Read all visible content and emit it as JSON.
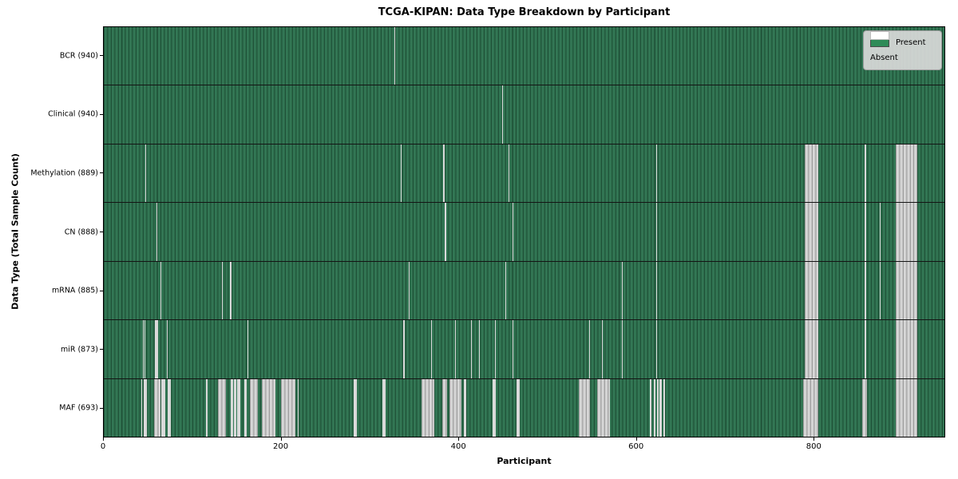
{
  "title": "TCGA-KIPAN: Data Type Breakdown by Participant",
  "legend": {
    "present_label": "Present",
    "absent_label": "Absent"
  },
  "colors": {
    "present_green": "#2e8b57",
    "present_green_dark": "#1f5138",
    "absent_white": "#ffffff",
    "absent_gray_stripe": "#c7c7c7",
    "legend_bg": "#d9d9d9",
    "figure_bg": "#ffffff"
  },
  "chart_data": {
    "type": "heatmap",
    "title": "TCGA-KIPAN: Data Type Breakdown by Participant",
    "xlabel": "Participant",
    "ylabel": "Data Type (Total Sample Count)",
    "legend": [
      "Present",
      "Absent"
    ],
    "legend_position": "upper right",
    "x_ticks": [
      0,
      200,
      400,
      600,
      800
    ],
    "n_axis": 948,
    "grid": false,
    "cell_states": {
      "present": "green",
      "absent": "white"
    },
    "rows": [
      {
        "name": "BCR",
        "label": "BCR (940)",
        "total_samples": 940,
        "absent_runs": [
          [
            328,
            328
          ]
        ]
      },
      {
        "name": "Clinical",
        "label": "Clinical (940)",
        "total_samples": 940,
        "absent_runs": [
          [
            449,
            449
          ]
        ]
      },
      {
        "name": "Methylation",
        "label": "Methylation (889)",
        "total_samples": 889,
        "absent_runs": [
          [
            47,
            47
          ],
          [
            335,
            335
          ],
          [
            383,
            383
          ],
          [
            456,
            456
          ],
          [
            623,
            623
          ],
          [
            790,
            805
          ],
          [
            858,
            859
          ],
          [
            893,
            916
          ]
        ]
      },
      {
        "name": "CN",
        "label": "CN (888)",
        "total_samples": 888,
        "absent_runs": [
          [
            59,
            59
          ],
          [
            384,
            385
          ],
          [
            461,
            461
          ],
          [
            623,
            623
          ],
          [
            790,
            805
          ],
          [
            858,
            859
          ],
          [
            875,
            875
          ],
          [
            893,
            916
          ]
        ]
      },
      {
        "name": "mRNA",
        "label": "mRNA (885)",
        "total_samples": 885,
        "absent_runs": [
          [
            64,
            64
          ],
          [
            133,
            133
          ],
          [
            142,
            143
          ],
          [
            344,
            344
          ],
          [
            453,
            453
          ],
          [
            584,
            584
          ],
          [
            623,
            623
          ],
          [
            790,
            805
          ],
          [
            858,
            859
          ],
          [
            875,
            875
          ],
          [
            893,
            916
          ]
        ]
      },
      {
        "name": "miR",
        "label": "miR (873)",
        "total_samples": 873,
        "absent_runs": [
          [
            44,
            44
          ],
          [
            46,
            46
          ],
          [
            58,
            60
          ],
          [
            71,
            71
          ],
          [
            162,
            162
          ],
          [
            338,
            338
          ],
          [
            369,
            369
          ],
          [
            396,
            396
          ],
          [
            414,
            414
          ],
          [
            423,
            423
          ],
          [
            441,
            441
          ],
          [
            461,
            461
          ],
          [
            547,
            547
          ],
          [
            562,
            562
          ],
          [
            584,
            584
          ],
          [
            623,
            623
          ],
          [
            790,
            805
          ],
          [
            858,
            859
          ],
          [
            893,
            916
          ]
        ]
      },
      {
        "name": "MAF",
        "label": "MAF (693)",
        "total_samples": 693,
        "absent_runs": [
          [
            42,
            42
          ],
          [
            45,
            48
          ],
          [
            57,
            63
          ],
          [
            65,
            68
          ],
          [
            72,
            75
          ],
          [
            115,
            116
          ],
          [
            129,
            137
          ],
          [
            143,
            145
          ],
          [
            147,
            148
          ],
          [
            150,
            153
          ],
          [
            158,
            160
          ],
          [
            165,
            173
          ],
          [
            178,
            193
          ],
          [
            200,
            215
          ],
          [
            219,
            219
          ],
          [
            282,
            284
          ],
          [
            314,
            317
          ],
          [
            358,
            372
          ],
          [
            382,
            386
          ],
          [
            390,
            402
          ],
          [
            406,
            408
          ],
          [
            438,
            441
          ],
          [
            465,
            468
          ],
          [
            536,
            547
          ],
          [
            556,
            570
          ],
          [
            616,
            617
          ],
          [
            620,
            621
          ],
          [
            624,
            625
          ],
          [
            627,
            628
          ],
          [
            631,
            632
          ],
          [
            789,
            805
          ],
          [
            855,
            860
          ],
          [
            893,
            916
          ]
        ]
      }
    ]
  }
}
